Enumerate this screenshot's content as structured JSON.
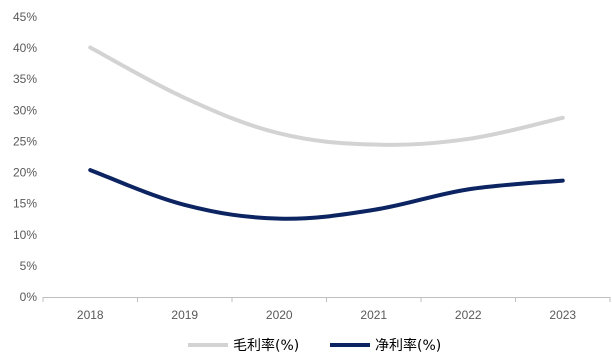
{
  "chart_data": {
    "type": "line",
    "title": "",
    "xlabel": "",
    "ylabel": "",
    "categories": [
      "2018",
      "2019",
      "2020",
      "2021",
      "2022",
      "2023"
    ],
    "ylim": [
      0,
      45
    ],
    "y_ticks": [
      0,
      5,
      10,
      15,
      20,
      25,
      30,
      35,
      40,
      45
    ],
    "y_tick_labels": [
      "0%",
      "5%",
      "10%",
      "15%",
      "20%",
      "25%",
      "30%",
      "35%",
      "40%",
      "45%"
    ],
    "grid": false,
    "legend_position": "bottom",
    "series": [
      {
        "name": "毛利率(%)",
        "color": "#d3d3d3",
        "values": [
          40.1,
          32.0,
          26.3,
          24.5,
          25.4,
          28.8
        ]
      },
      {
        "name": "净利率(%)",
        "color": "#0c2461",
        "values": [
          20.4,
          14.8,
          12.6,
          14.0,
          17.3,
          18.7
        ]
      }
    ]
  }
}
